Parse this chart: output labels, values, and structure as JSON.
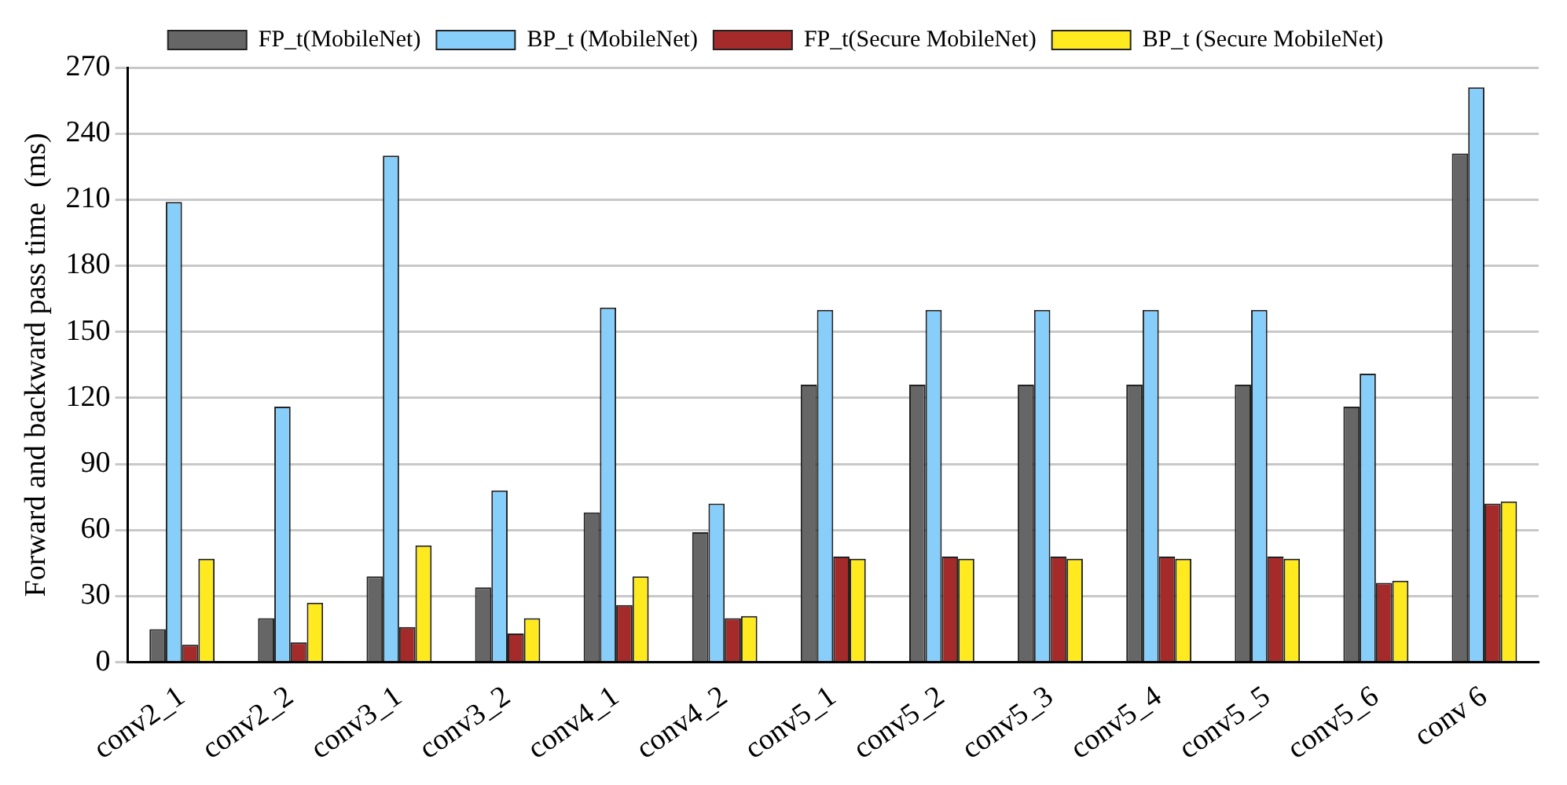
{
  "chart_data": {
    "type": "bar",
    "ylabel": "Forward and backward pass time  (ms)",
    "categories": [
      "conv2_1",
      "conv2_2",
      "conv3_1",
      "conv3_2",
      "conv4_1",
      "conv4_2",
      "conv5_1",
      "conv5_2",
      "conv5_3",
      "conv5_4",
      "conv5_5",
      "conv5_6",
      "conv 6"
    ],
    "series": [
      {
        "name": "FP_t(MobileNet)",
        "color": "#666666",
        "values": [
          15,
          20,
          39,
          34,
          68,
          59,
          126,
          126,
          126,
          126,
          126,
          116,
          231
        ]
      },
      {
        "name": "BP_t (MobileNet)",
        "color": "#87cefa",
        "values": [
          209,
          116,
          230,
          78,
          161,
          72,
          160,
          160,
          160,
          160,
          160,
          131,
          261
        ]
      },
      {
        "name": "FP_t(Secure MobileNet)",
        "color": "#a52a2a",
        "values": [
          8,
          9,
          16,
          13,
          26,
          20,
          48,
          48,
          48,
          48,
          48,
          36,
          72
        ]
      },
      {
        "name": "BP_t (Secure MobileNet)",
        "color": "#ffea20",
        "values": [
          47,
          27,
          53,
          20,
          39,
          21,
          47,
          47,
          47,
          47,
          47,
          37,
          73
        ]
      }
    ],
    "ylim": [
      0,
      270
    ],
    "yticks": [
      0,
      30,
      60,
      90,
      120,
      150,
      180,
      210,
      240,
      270
    ],
    "grid": "y",
    "legend": "top"
  }
}
